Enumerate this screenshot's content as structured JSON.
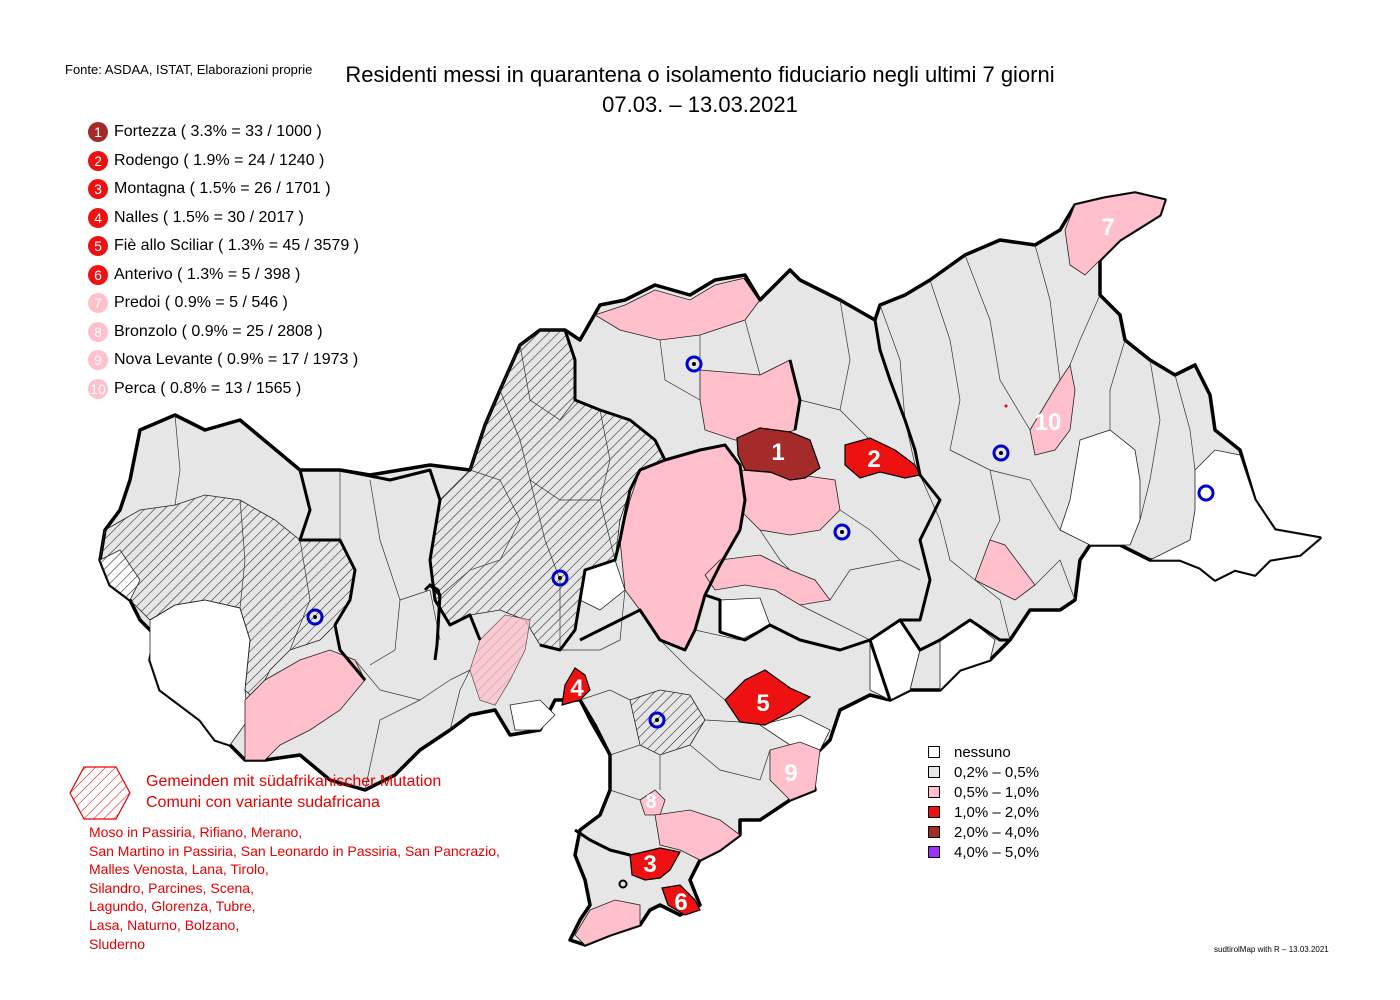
{
  "source": "Fonte: ASDAA, ISTAT, Elaborazioni proprie",
  "title": {
    "line1": "Residenti messi in quarantena o isolamento fiduciario negli ultimi 7 giorni",
    "line2": "07.03. – 13.03.2021"
  },
  "colors": {
    "none": "#ffffff",
    "c1": "#e6e6e6",
    "c2": "#ffc0cb",
    "c3": "#ee1111",
    "c4": "#a52a2a",
    "c5": "#9b30ff",
    "variant": "#e60000",
    "hospital": "#0000cc"
  },
  "ranking": [
    {
      "n": "1",
      "text": "Fortezza ( 3.3% = 33 / 1000 )",
      "color": "#a52a2a"
    },
    {
      "n": "2",
      "text": "Rodengo ( 1.9% = 24 / 1240 )",
      "color": "#ee1111"
    },
    {
      "n": "3",
      "text": "Montagna ( 1.5% = 26 / 1701 )",
      "color": "#ee1111"
    },
    {
      "n": "4",
      "text": "Nalles ( 1.5% = 30 / 2017 )",
      "color": "#ee1111"
    },
    {
      "n": "5",
      "text": "Fiè allo Sciliar ( 1.3% = 45 / 3579 )",
      "color": "#ee1111"
    },
    {
      "n": "6",
      "text": "Anterivo ( 1.3% = 5 / 398 )",
      "color": "#ee1111"
    },
    {
      "n": "7",
      "text": "Predoi ( 0.9% = 5 / 546 )",
      "color": "#ffc0cb"
    },
    {
      "n": "8",
      "text": "Bronzolo ( 0.9% = 25 / 2808 )",
      "color": "#ffc0cb"
    },
    {
      "n": "9",
      "text": "Nova Levante ( 0.9% = 17 / 1973 )",
      "color": "#ffc0cb"
    },
    {
      "n": "10",
      "text": "Perca ( 0.8% = 13 / 1565 )",
      "color": "#ffc0cb"
    }
  ],
  "variant": {
    "title_de": "Gemeinden mit südafrikanischer Mutation",
    "title_it": "Comuni con variante sudafricana",
    "lines": [
      "Moso in Passiria,  Rifiano,  Merano,",
      "San Martino in Passiria,  San Leonardo in Passiria,  San Pancrazio,",
      "Malles Venosta,  Lana,  Tirolo,",
      "Silandro,  Parcines,  Scena,",
      "Lagundo,  Glorenza,  Tubre,",
      "Lasa,  Naturno,  Bolzano,",
      "Sluderno"
    ]
  },
  "legend": [
    {
      "label": "nessuno",
      "color": "#ffffff"
    },
    {
      "label": "0,2% – 0,5%",
      "color": "#e6e6e6"
    },
    {
      "label": "0,5% – 1,0%",
      "color": "#ffc0cb"
    },
    {
      "label": "1,0% – 2,0%",
      "color": "#ee1111"
    },
    {
      "label": "2,0% – 4,0%",
      "color": "#a52a2a"
    },
    {
      "label": "4,0% – 5,0%",
      "color": "#9b30ff"
    }
  ],
  "credit": "sudtirolMap with R – 13.03.2021"
}
